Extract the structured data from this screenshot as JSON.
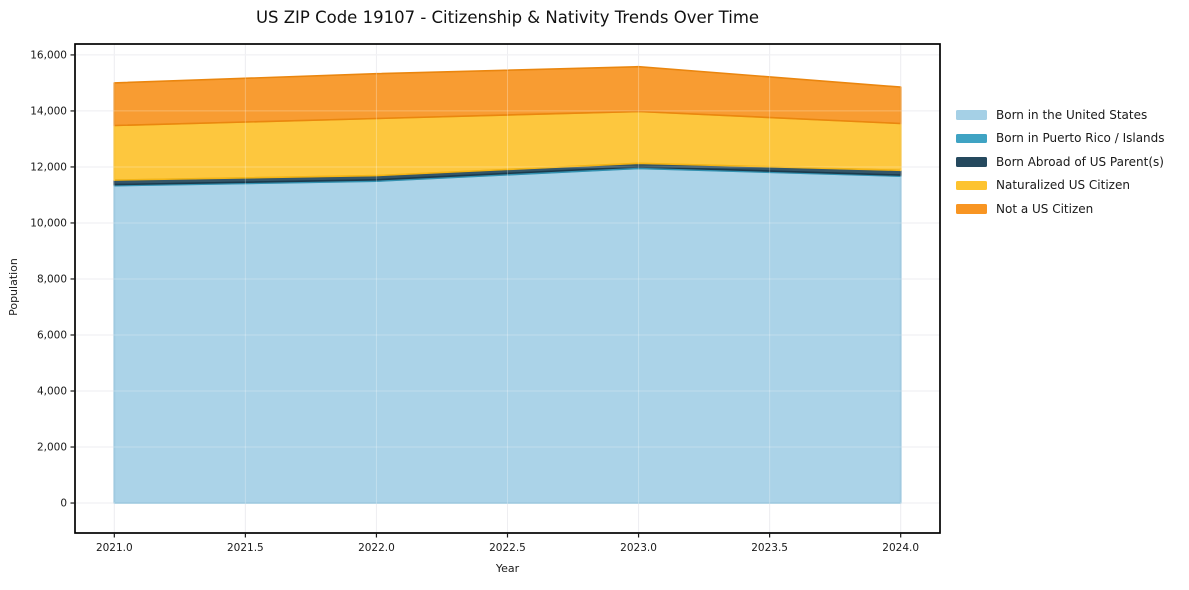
{
  "title": "US ZIP Code 19107 - Citizenship & Nativity Trends Over Time",
  "chart_data": {
    "type": "area",
    "stacked": true,
    "title": "US ZIP Code 19107 - Citizenship & Nativity Trends Over Time",
    "xlabel": "Year",
    "ylabel": "Population",
    "x": [
      2021,
      2022,
      2023,
      2024
    ],
    "series": [
      {
        "name": "Born in the United States",
        "color": "#a5d0e6",
        "edge": "#86bcd7",
        "values": [
          11330,
          11490,
          11950,
          11670
        ]
      },
      {
        "name": "Born in Puerto Rico / Islands",
        "color": "#3fa3c3",
        "edge": "#3391b0",
        "values": [
          40,
          50,
          50,
          40
        ]
      },
      {
        "name": "Born Abroad of US Parent(s)",
        "color": "#25495e",
        "edge": "#1b3a4c",
        "values": [
          160,
          150,
          130,
          170
        ]
      },
      {
        "name": "Naturalized US Citizen",
        "color": "#fdc32f",
        "edge": "#f3b414",
        "values": [
          1950,
          2040,
          1850,
          1670
        ]
      },
      {
        "name": "Not a US Citizen",
        "color": "#f89522",
        "edge": "#ea860f",
        "values": [
          1520,
          1600,
          1600,
          1300
        ]
      }
    ],
    "totals": [
      15000,
      15330,
      15580,
      14850
    ],
    "x_ticks": [
      2021.0,
      2021.5,
      2022.0,
      2022.5,
      2023.0,
      2023.5,
      2024.0
    ],
    "x_tick_labels": [
      "2021.0",
      "2021.5",
      "2022.0",
      "2022.5",
      "2023.0",
      "2023.5",
      "2024.0"
    ],
    "y_ticks": [
      0,
      2000,
      4000,
      6000,
      8000,
      10000,
      12000,
      14000,
      16000
    ],
    "y_tick_labels": [
      "0",
      "2,000",
      "4,000",
      "6,000",
      "8,000",
      "10,000",
      "12,000",
      "14,000",
      "16,000"
    ],
    "xlim": [
      2020.85,
      2024.15
    ],
    "ylim": [
      -1070,
      16390
    ],
    "grid": true,
    "legend_position": "right-outside",
    "colors": {
      "background": "#ffffff",
      "grid": "#e8e8ec",
      "frame": "#000000",
      "tick_text": "#1a1a1a",
      "title_text": "#111111"
    }
  }
}
